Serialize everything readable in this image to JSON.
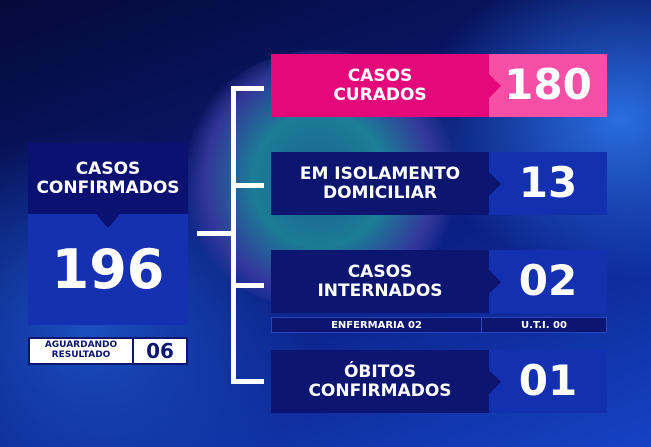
{
  "confirmed": {
    "label": "CASOS CONFIRMADOS",
    "value": "196"
  },
  "awaiting": {
    "label": "AGUARDANDO RESULTADO",
    "value": "06"
  },
  "rows": [
    {
      "label": "CASOS CURADOS",
      "value": "180",
      "color": "#e5087a"
    },
    {
      "label": "EM ISOLAMENTO DOMICILIAR",
      "value": "13"
    },
    {
      "label": "CASOS INTERNADOS",
      "value": "02"
    },
    {
      "label": "ÓBITOS CONFIRMADOS",
      "value": "01"
    }
  ],
  "hospital": {
    "ward": "ENFERMARIA 02",
    "icu": "U.T.I. 00"
  },
  "colors": {
    "dark": "#0c1570",
    "blue": "#1330b0",
    "pink": "#e5087a",
    "pink_light": "#f74fa6"
  }
}
